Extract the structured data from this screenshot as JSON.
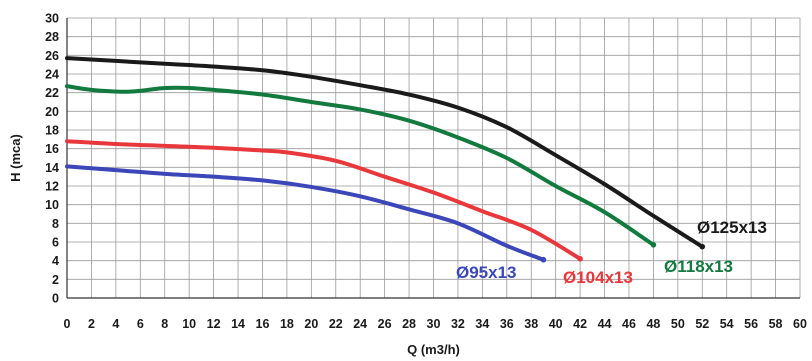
{
  "chart_data": {
    "type": "line",
    "title": "",
    "xlabel": "Q (m3/h)",
    "ylabel": "H (mca)",
    "xlim": [
      0,
      60
    ],
    "ylim": [
      0,
      30
    ],
    "x_ticks": [
      0,
      2,
      4,
      6,
      8,
      10,
      12,
      14,
      16,
      18,
      20,
      22,
      24,
      26,
      28,
      30,
      32,
      34,
      36,
      38,
      40,
      42,
      44,
      46,
      48,
      50,
      52,
      54,
      56,
      58,
      60
    ],
    "y_ticks": [
      0,
      2,
      4,
      6,
      8,
      10,
      12,
      14,
      16,
      18,
      20,
      22,
      24,
      26,
      28,
      30
    ],
    "grid": true,
    "legend": "none",
    "series": [
      {
        "name": "Ø125x13",
        "color": "#1a1a1a",
        "x": [
          0,
          4,
          8,
          12,
          16,
          20,
          24,
          28,
          32,
          36,
          40,
          44,
          48,
          52
        ],
        "y": [
          25.7,
          25.4,
          25.1,
          24.8,
          24.4,
          23.7,
          22.8,
          21.8,
          20.4,
          18.3,
          15.3,
          12.2,
          8.8,
          5.5
        ]
      },
      {
        "name": "Ø118x13",
        "color": "#127a3e",
        "x": [
          0,
          2,
          5,
          8,
          10,
          12,
          16,
          20,
          24,
          28,
          32,
          36,
          40,
          44,
          48
        ],
        "y": [
          22.7,
          22.3,
          22.1,
          22.5,
          22.5,
          22.3,
          21.8,
          21.0,
          20.2,
          19.0,
          17.2,
          15.0,
          12.0,
          9.2,
          5.7
        ]
      },
      {
        "name": "Ø104x13",
        "color": "#e8383b",
        "x": [
          0,
          4,
          8,
          12,
          16,
          18,
          22,
          26,
          30,
          34,
          38,
          42
        ],
        "y": [
          16.8,
          16.5,
          16.3,
          16.1,
          15.8,
          15.6,
          14.7,
          13.0,
          11.3,
          9.3,
          7.3,
          4.2
        ]
      },
      {
        "name": "Ø95x13",
        "color": "#3b47b8",
        "x": [
          0,
          4,
          8,
          12,
          16,
          20,
          24,
          28,
          32,
          36,
          39
        ],
        "y": [
          14.1,
          13.7,
          13.3,
          13.0,
          12.6,
          11.9,
          10.9,
          9.5,
          8.0,
          5.6,
          4.1
        ]
      }
    ],
    "labels": [
      {
        "text": "Ø125x13",
        "color": "#1a1a1a"
      },
      {
        "text": "Ø118x13",
        "color": "#127a3e"
      },
      {
        "text": "Ø104x13",
        "color": "#e8383b"
      },
      {
        "text": "Ø95x13",
        "color": "#3b47b8"
      }
    ]
  }
}
